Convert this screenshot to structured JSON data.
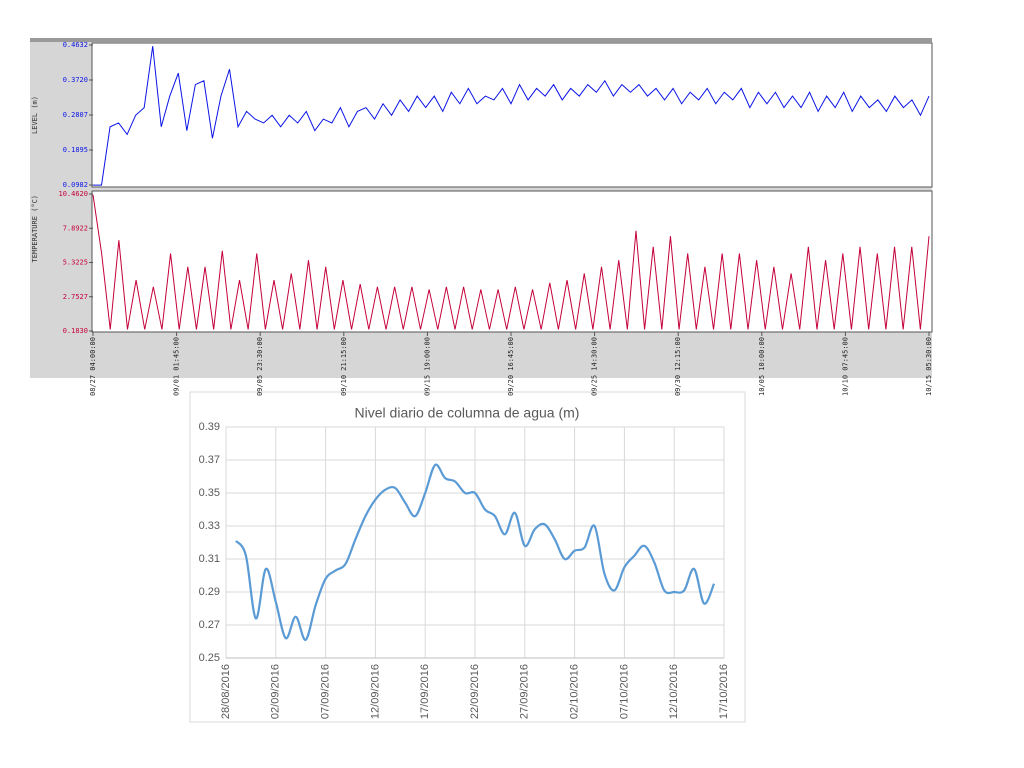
{
  "chart_data": [
    {
      "type": "line",
      "ylabel": "LEVEL (m)",
      "color": "#0a14e6",
      "ylim": [
        0.0982,
        0.4632
      ],
      "yticks": [
        {
          "value": 0.4632,
          "label": "0.4632"
        },
        {
          "value": 0.372,
          "label": "0.3720"
        },
        {
          "value": 0.2807,
          "label": "0.2807"
        },
        {
          "value": 0.1895,
          "label": "0.1895"
        },
        {
          "value": 0.0982,
          "label": "0.0982"
        }
      ],
      "xtick_labels": [
        "08/27 04:00:00",
        "09/01 01:45:00",
        "09/05 23:30:00",
        "09/10 21:15:00",
        "09/15 19:00:00",
        "09/20 16:45:00",
        "09/25 14:30:00",
        "09/30 12:15:00",
        "10/05 10:00:00",
        "10/10 07:45:00",
        "10/15 05:30:00"
      ],
      "values": [
        0.098,
        0.098,
        0.25,
        0.26,
        0.23,
        0.28,
        0.3,
        0.46,
        0.25,
        0.33,
        0.39,
        0.24,
        0.36,
        0.37,
        0.22,
        0.33,
        0.4,
        0.25,
        0.29,
        0.27,
        0.26,
        0.28,
        0.25,
        0.28,
        0.26,
        0.29,
        0.24,
        0.27,
        0.26,
        0.3,
        0.25,
        0.29,
        0.3,
        0.27,
        0.31,
        0.28,
        0.32,
        0.29,
        0.33,
        0.3,
        0.33,
        0.29,
        0.34,
        0.31,
        0.35,
        0.31,
        0.33,
        0.32,
        0.35,
        0.31,
        0.36,
        0.32,
        0.35,
        0.33,
        0.36,
        0.32,
        0.35,
        0.33,
        0.36,
        0.34,
        0.37,
        0.33,
        0.36,
        0.34,
        0.36,
        0.33,
        0.35,
        0.32,
        0.35,
        0.31,
        0.34,
        0.32,
        0.35,
        0.31,
        0.34,
        0.32,
        0.35,
        0.3,
        0.34,
        0.31,
        0.34,
        0.3,
        0.33,
        0.3,
        0.34,
        0.29,
        0.33,
        0.3,
        0.34,
        0.29,
        0.33,
        0.3,
        0.32,
        0.29,
        0.33,
        0.3,
        0.32,
        0.28,
        0.33
      ]
    },
    {
      "type": "line",
      "ylabel": "TEMPERATURE (°C)",
      "color": "#c4003a",
      "ylim": [
        0.183,
        10.462
      ],
      "yticks": [
        {
          "value": 10.462,
          "label": "10.4620"
        },
        {
          "value": 7.8922,
          "label": "7.8922"
        },
        {
          "value": 5.3225,
          "label": "5.3225"
        },
        {
          "value": 2.7527,
          "label": "2.7527"
        },
        {
          "value": 0.183,
          "label": "0.1830"
        }
      ],
      "values": [
        10.4,
        6.0,
        0.3,
        7.0,
        0.3,
        4.0,
        0.3,
        3.5,
        0.3,
        6.0,
        0.3,
        5.0,
        0.3,
        5.0,
        0.3,
        6.2,
        0.3,
        4.0,
        0.3,
        6.0,
        0.3,
        4.0,
        0.3,
        4.5,
        0.3,
        5.5,
        0.3,
        5.0,
        0.3,
        4.0,
        0.3,
        3.7,
        0.3,
        3.5,
        0.3,
        3.5,
        0.3,
        3.5,
        0.3,
        3.3,
        0.3,
        3.5,
        0.3,
        3.5,
        0.3,
        3.3,
        0.3,
        3.3,
        0.3,
        3.5,
        0.3,
        3.3,
        0.3,
        3.8,
        0.3,
        4.0,
        0.3,
        4.5,
        0.3,
        5.0,
        0.3,
        5.5,
        0.3,
        7.7,
        0.3,
        6.5,
        0.3,
        7.3,
        0.3,
        6.0,
        0.3,
        5.0,
        0.3,
        6.0,
        0.3,
        6.0,
        0.3,
        5.5,
        0.3,
        5.0,
        0.3,
        4.5,
        0.3,
        6.5,
        0.3,
        5.5,
        0.3,
        6.0,
        0.3,
        6.5,
        0.3,
        6.0,
        0.3,
        6.5,
        0.3,
        6.5,
        0.3,
        7.3
      ]
    },
    {
      "type": "line",
      "title": "Nivel diario de columna de agua (m)",
      "color": "#5b9bd5",
      "smooth": true,
      "grid": true,
      "xlim": [
        "28/08/2016",
        "17/10/2016"
      ],
      "xticks": [
        "28/08/2016",
        "02/09/2016",
        "07/09/2016",
        "12/09/2016",
        "17/09/2016",
        "22/09/2016",
        "27/09/2016",
        "02/10/2016",
        "07/10/2016",
        "12/10/2016",
        "17/10/2016"
      ],
      "ylim": [
        0.25,
        0.39
      ],
      "yticks": [
        0.25,
        0.27,
        0.29,
        0.31,
        0.33,
        0.35,
        0.37,
        0.39
      ],
      "x": [
        "29/08/2016",
        "30/08/2016",
        "31/08/2016",
        "01/09/2016",
        "02/09/2016",
        "03/09/2016",
        "04/09/2016",
        "05/09/2016",
        "06/09/2016",
        "07/09/2016",
        "08/09/2016",
        "09/09/2016",
        "10/09/2016",
        "11/09/2016",
        "12/09/2016",
        "13/09/2016",
        "14/09/2016",
        "15/09/2016",
        "16/09/2016",
        "17/09/2016",
        "18/09/2016",
        "19/09/2016",
        "20/09/2016",
        "21/09/2016",
        "22/09/2016",
        "23/09/2016",
        "24/09/2016",
        "25/09/2016",
        "26/09/2016",
        "27/09/2016",
        "28/09/2016",
        "29/09/2016",
        "30/09/2016",
        "01/10/2016",
        "02/10/2016",
        "03/10/2016",
        "04/10/2016",
        "05/10/2016",
        "06/10/2016",
        "07/10/2016",
        "08/10/2016",
        "09/10/2016",
        "10/10/2016",
        "11/10/2016",
        "12/10/2016",
        "13/10/2016",
        "14/10/2016",
        "15/10/2016",
        "16/10/2016"
      ],
      "values": [
        0.321,
        0.312,
        0.274,
        0.304,
        0.284,
        0.262,
        0.275,
        0.261,
        0.282,
        0.298,
        0.303,
        0.307,
        0.322,
        0.336,
        0.346,
        0.352,
        0.353,
        0.344,
        0.336,
        0.35,
        0.367,
        0.359,
        0.357,
        0.35,
        0.35,
        0.34,
        0.336,
        0.325,
        0.338,
        0.318,
        0.328,
        0.331,
        0.322,
        0.31,
        0.315,
        0.317,
        0.33,
        0.301,
        0.291,
        0.305,
        0.312,
        0.318,
        0.308,
        0.291,
        0.29,
        0.291,
        0.304,
        0.283,
        0.295
      ]
    }
  ]
}
